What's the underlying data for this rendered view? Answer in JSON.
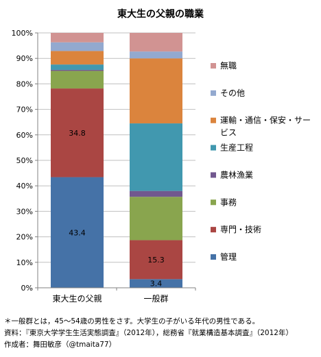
{
  "chart_data": {
    "type": "bar",
    "stacked": true,
    "percent": true,
    "title": "東大生の父親の職業",
    "categories": [
      "東大生の父親",
      "一般群"
    ],
    "ylim": [
      0,
      100
    ],
    "y_ticks": [
      "0%",
      "10%",
      "20%",
      "30%",
      "40%",
      "50%",
      "60%",
      "70%",
      "80%",
      "90%",
      "100%"
    ],
    "grid": true,
    "legend_position": "right",
    "series": [
      {
        "name": "管理",
        "color": "#4572a7",
        "values": [
          43.4,
          3.4
        ],
        "labels": [
          "43.4",
          "3.4"
        ]
      },
      {
        "name": "専門・技術",
        "color": "#aa4643",
        "values": [
          34.8,
          15.3
        ],
        "labels": [
          "34.8",
          "15.3"
        ]
      },
      {
        "name": "事務",
        "color": "#89a54e",
        "values": [
          6.9,
          17.0
        ],
        "labels": [
          "",
          ""
        ]
      },
      {
        "name": "農林漁業",
        "color": "#71588f",
        "values": [
          0.4,
          2.3
        ],
        "labels": [
          "",
          ""
        ]
      },
      {
        "name": "生産工程",
        "color": "#4198af",
        "values": [
          2.1,
          26.5
        ],
        "labels": [
          "",
          ""
        ]
      },
      {
        "name": "運輸・通信・保安・サービス",
        "color": "#db843d",
        "values": [
          5.3,
          25.5
        ],
        "labels": [
          "",
          ""
        ]
      },
      {
        "name": "その他",
        "color": "#93a9cf",
        "values": [
          3.4,
          2.7
        ],
        "labels": [
          "",
          ""
        ]
      },
      {
        "name": "無職",
        "color": "#d19392",
        "values": [
          3.7,
          7.3
        ],
        "labels": [
          "",
          ""
        ]
      }
    ],
    "legend_lines": [
      [
        "無職"
      ],
      [
        "その他"
      ],
      [
        "運輸・通信・保安・サー",
        "ビス"
      ],
      [
        "生産工程"
      ],
      [
        "農林漁業"
      ],
      [
        "事務"
      ],
      [
        "専門・技術"
      ],
      [
        "管理"
      ]
    ]
  },
  "notes": [
    "＊一般群とは，45〜54歳の男性をさす。大学生の子がいる年代の男性である。",
    "資料：『東京大学学生生活実態調査』（2012年），総務省『就業構造基本調査』（2012年）",
    "作成者：舞田敏彦（@tmaita77）"
  ]
}
